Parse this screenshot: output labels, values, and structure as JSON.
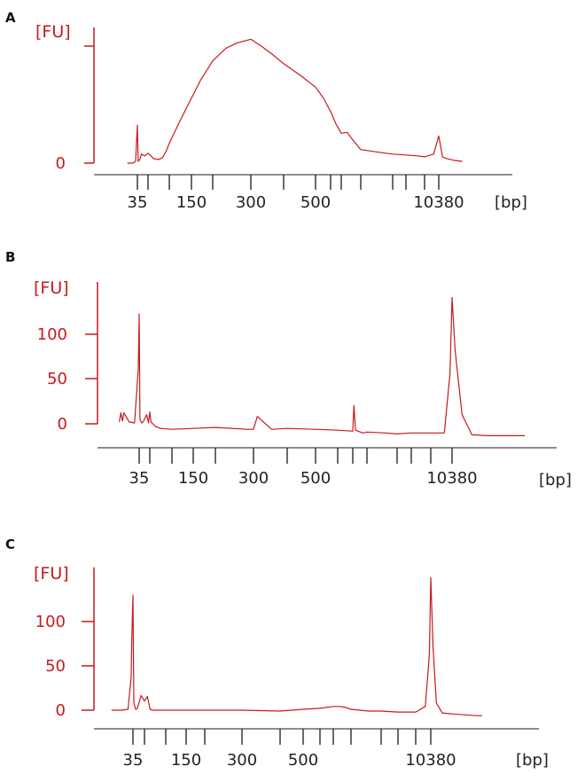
{
  "colors": {
    "trace": "#c8191e",
    "axis_y": "#c8191e",
    "axis_x": "#1a1a1a",
    "text_x": "#222222"
  },
  "chart_data": [
    {
      "panel": "A",
      "type": "line",
      "y_unit_label": "[FU]",
      "x_unit_label": "[bp]",
      "y_ticks": [
        "0"
      ],
      "x_tick_labels": [
        "35",
        "150",
        "300",
        "500",
        "10380"
      ],
      "ylim": [
        -8,
        150
      ],
      "marker_ladder_sizes": [
        35,
        50,
        100,
        150,
        200,
        300,
        400,
        500,
        600,
        700,
        1000,
        2000,
        3000,
        7000,
        10380
      ],
      "series": [
        {
          "x": [
            25,
            30,
            33,
            35,
            36,
            38,
            40,
            45,
            50,
            55,
            60,
            70,
            80,
            90,
            100,
            120,
            150,
            170,
            200,
            230,
            260,
            300,
            330,
            360,
            400,
            450,
            500,
            550,
            600,
            650,
            700,
            780,
            850,
            1000,
            1500,
            2000,
            3000,
            5000,
            7000,
            9000,
            10380,
            11500,
            13000,
            16000,
            20000
          ],
          "y": [
            0,
            0,
            2,
            42,
            2,
            4,
            10,
            8,
            11,
            8,
            5,
            4,
            6,
            13,
            22,
            45,
            72,
            92,
            113,
            127,
            133,
            137,
            129,
            121,
            110,
            97,
            84,
            72,
            57,
            43,
            33,
            34,
            27,
            15,
            12,
            10,
            9,
            8,
            7,
            10,
            30,
            7,
            5,
            3,
            2
          ]
        }
      ]
    },
    {
      "panel": "B",
      "type": "line",
      "y_unit_label": "[FU]",
      "x_unit_label": "[bp]",
      "y_ticks": [
        "0",
        "50",
        "100"
      ],
      "x_tick_labels": [
        "35",
        "150",
        "300",
        "500",
        "10380"
      ],
      "ylim": [
        -15,
        155
      ],
      "marker_ladder_sizes": [
        35,
        50,
        100,
        150,
        200,
        300,
        400,
        500,
        600,
        700,
        1000,
        2000,
        3000,
        7000,
        10380
      ],
      "series": [
        {
          "x": [
            18,
            19,
            20,
            21,
            25,
            30,
            34,
            35,
            36,
            38,
            40,
            45,
            48,
            50,
            52,
            55,
            60,
            70,
            100,
            150,
            200,
            280,
            300,
            310,
            350,
            400,
            500,
            600,
            700,
            720,
            750,
            800,
            900,
            1000,
            1500,
            2000,
            3000,
            5000,
            7000,
            9000,
            10000,
            10380,
            11000,
            12500,
            15000,
            20000,
            30000,
            40000
          ],
          "y": [
            2,
            12,
            3,
            12,
            2,
            1,
            60,
            120,
            5,
            1,
            2,
            10,
            1,
            13,
            2,
            0,
            -3,
            -5,
            -6,
            -5,
            -4,
            -6,
            -6,
            8,
            -6,
            -5,
            -6,
            -7,
            -8,
            20,
            -7,
            -8,
            -10,
            -9,
            -10,
            -11,
            -10,
            -10,
            -10,
            -10,
            55,
            138,
            80,
            10,
            -12,
            -13,
            -13,
            -13
          ]
        }
      ]
    },
    {
      "panel": "C",
      "type": "line",
      "y_unit_label": "[FU]",
      "x_unit_label": "[bp]",
      "y_ticks": [
        "0",
        "50",
        "100"
      ],
      "x_tick_labels": [
        "35",
        "150",
        "300",
        "500",
        "10380"
      ],
      "ylim": [
        -15,
        155
      ],
      "marker_ladder_sizes": [
        35,
        50,
        100,
        150,
        200,
        300,
        400,
        500,
        600,
        700,
        1000,
        2000,
        3000,
        7000,
        10380
      ],
      "series": [
        {
          "x": [
            18,
            25,
            30,
            33,
            34,
            35,
            36,
            38,
            40,
            45,
            50,
            55,
            60,
            65,
            80,
            100,
            150,
            200,
            300,
            400,
            500,
            600,
            700,
            800,
            900,
            1000,
            1500,
            2000,
            3000,
            5000,
            7000,
            9000,
            10000,
            10380,
            11000,
            12000,
            14000,
            18000,
            25000,
            35000,
            40000
          ],
          "y": [
            0,
            0,
            1,
            35,
            85,
            125,
            8,
            1,
            2,
            16,
            10,
            15,
            1,
            0,
            0,
            0,
            0,
            0,
            0,
            -1,
            1,
            2,
            4,
            4,
            3,
            1,
            -1,
            -1,
            -2,
            -2,
            -2,
            4,
            60,
            144,
            70,
            8,
            -3,
            -4,
            -5,
            -6,
            -6
          ]
        }
      ]
    }
  ]
}
